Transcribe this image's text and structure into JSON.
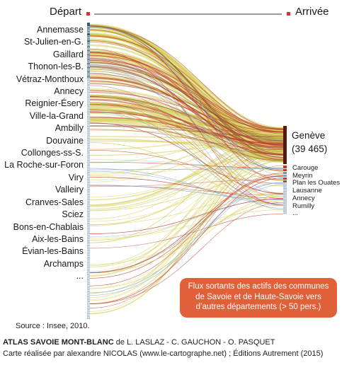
{
  "header": {
    "depart": "Départ",
    "arrivee": "Arrivée"
  },
  "origins": [
    "Annemasse",
    "St-Julien-en-G.",
    "Gaillard",
    "Thonon-les-B.",
    "Vétraz-Monthoux",
    "Annecy",
    "Reignier-Ésery",
    "Ville-la-Grand",
    "Ambilly",
    "Douvaine",
    "Collonges-ss-S.",
    "La Roche-sur-Foron",
    "Viry",
    "Valleiry",
    "Cranves-Sales",
    "Sciez",
    "Bons-en-Chablais",
    "Aix-les-Bains",
    "Évian-les-Bains",
    "Archamps",
    "..."
  ],
  "geneve": {
    "name": "Genève",
    "value": "(39 465)"
  },
  "destinations": [
    "Carouge",
    "Meyrin",
    "Plan les Ouates",
    "Lausanne",
    "Annecy",
    "Rumilly",
    "..."
  ],
  "note": "Flux sortants des actifs des communes de Savoie et de Haute-Savoie vers d’autres départements (> 50 pers.)",
  "source": "Source : Insee, 2010.",
  "credits": {
    "atlas": "ATLAS SAVOIE MONT-BLANC",
    "authors": " de L. LASLAZ - C. GAUCHON - O. PASQUET",
    "made_by": "Carte réalisée par alexandre NICOLAS (www.le-cartographe.net) ; Éditions Autrement (2015)"
  },
  "colors": {
    "flow_yellow": "#d6cf5a",
    "flow_red": "#c0392b",
    "flow_brown": "#8a5a3a",
    "flow_blue": "#7fa7c9",
    "dest_bar": "#5a1a12",
    "origin_bar": "#2e5d80",
    "note_bg": "#e0603a",
    "marker": "#d9342b"
  }
}
